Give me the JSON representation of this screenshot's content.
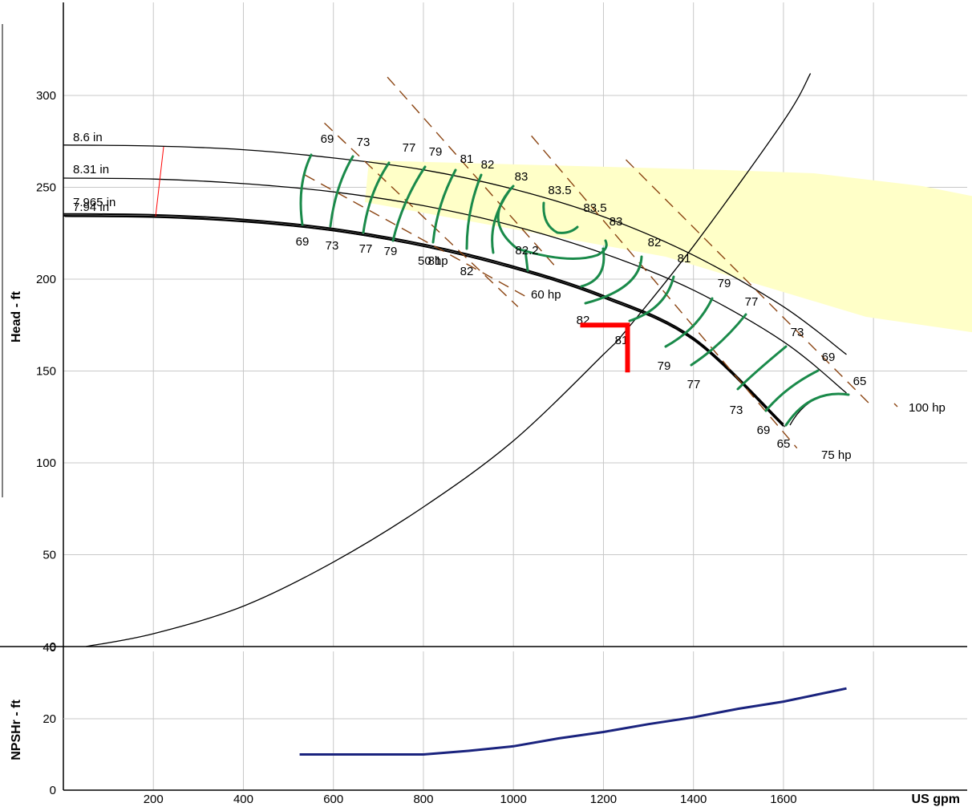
{
  "chart_data": [
    {
      "type": "line",
      "ylabel": "Head - ft",
      "xlim": [
        0,
        1700
      ],
      "ylim": [
        0,
        350
      ],
      "x_ticks": [
        200,
        400,
        600,
        800,
        1000,
        1200,
        1400,
        1600
      ],
      "y_ticks": [
        0,
        50,
        100,
        150,
        200,
        250,
        300
      ],
      "grid": true,
      "colors": {
        "curves": "#000000",
        "efficiency": "#1a8a4a",
        "power": "#8b4513",
        "region": "#ffffc8",
        "operating_point": "#ff0000"
      },
      "impeller_curves": [
        {
          "name": "8.6 in",
          "x": [
            0,
            200,
            400,
            600,
            800,
            1000,
            1200,
            1400,
            1600,
            1740
          ],
          "y": [
            273,
            272.5,
            270.5,
            266,
            259.5,
            249,
            234,
            213,
            185,
            159
          ]
        },
        {
          "name": "8.31 in",
          "x": [
            0,
            200,
            400,
            600,
            800,
            1000,
            1200,
            1400,
            1600,
            1740
          ],
          "y": [
            255,
            254.5,
            252,
            247.5,
            240,
            229,
            214,
            194,
            166,
            138
          ]
        },
        {
          "name": "7.965 in",
          "x": [
            0,
            200,
            400,
            600,
            800,
            1000,
            1200,
            1400,
            1600
          ],
          "y": [
            235.5,
            235,
            232.5,
            227.5,
            219,
            207,
            191,
            168,
            121
          ]
        },
        {
          "name": "7.94 in",
          "x": [
            0,
            200,
            400,
            600,
            800,
            1000,
            1200,
            1400,
            1600
          ],
          "y": [
            234.5,
            234,
            231.5,
            226.5,
            218,
            206,
            190,
            167,
            120
          ]
        }
      ],
      "system_curve": {
        "x": [
          50,
          200,
          400,
          600,
          800,
          1000,
          1200,
          1250,
          1400,
          1600,
          1660
        ],
        "y": [
          0,
          7,
          22,
          46,
          76,
          112,
          159,
          172,
          218,
          286,
          312
        ]
      },
      "efficiency_labels_top": [
        "69",
        "73",
        "77",
        "79",
        "81",
        "82",
        "83",
        "83.5",
        "83.5",
        "83",
        "82",
        "81",
        "79",
        "77",
        "73",
        "69",
        "65"
      ],
      "efficiency_labels_bottom": [
        "69",
        "73",
        "77",
        "79",
        "81",
        "82",
        "82.2",
        "82",
        "81",
        "79",
        "77",
        "73",
        "69",
        "65"
      ],
      "power_curves": [
        {
          "name": "50 hp",
          "x": [
            580,
            1010
          ],
          "y": [
            285,
            185
          ]
        },
        {
          "name": "60 hp",
          "x": [
            720,
            1100
          ],
          "y": [
            310,
            205
          ]
        },
        {
          "name": "75 hp",
          "x": [
            1040,
            1630
          ],
          "y": [
            278,
            108
          ]
        },
        {
          "name": "100 hp",
          "x": [
            1250,
            1800
          ],
          "y": [
            265,
            130
          ]
        }
      ],
      "power_labels": [
        "50 hp",
        "60 hp",
        "75 hp",
        "100 hp"
      ],
      "operating_point": {
        "x": 1250,
        "y": 175
      }
    },
    {
      "type": "line",
      "ylabel": "NPSHr - ft",
      "xlabel": "US gpm",
      "xlim": [
        0,
        1700
      ],
      "ylim": [
        0,
        40
      ],
      "y_ticks": [
        0,
        20,
        40
      ],
      "grid": true,
      "series": [
        {
          "x": [
            525,
            600,
            700,
            800,
            900,
            1000,
            1100,
            1200,
            1300,
            1400,
            1500,
            1600,
            1740
          ],
          "y": [
            10,
            10,
            10,
            10,
            11,
            12.3,
            14.5,
            16.3,
            18.5,
            20.4,
            22.8,
            24.8,
            28.5
          ]
        }
      ]
    }
  ]
}
